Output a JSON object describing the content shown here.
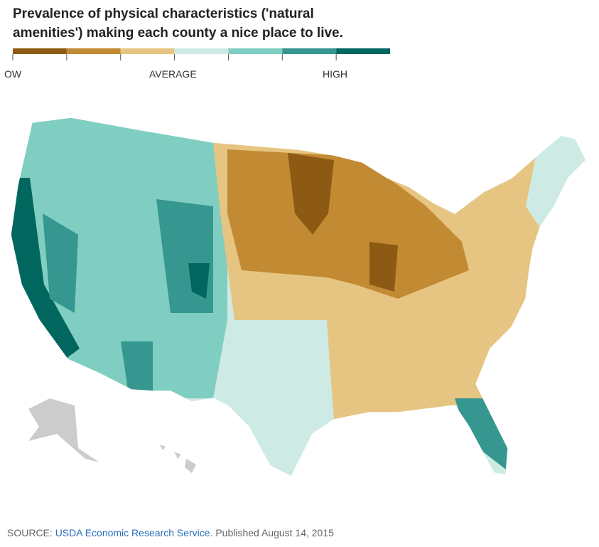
{
  "title": [
    "Prevalence of physical characteristics ('natural",
    "amenities') making each county a nice place to live."
  ],
  "legend": {
    "colors": [
      "#8c5a13",
      "#c38a34",
      "#e6c582",
      "#cdebe4",
      "#80cdc1",
      "#35978f",
      "#01665e"
    ],
    "labels": [
      "OW",
      "AVERAGE",
      "HIGH"
    ]
  },
  "source": {
    "prefix": "SOURCE:",
    "link": "USDA Economic Research Service",
    "suffix": ". Published August 14, 2015"
  }
}
